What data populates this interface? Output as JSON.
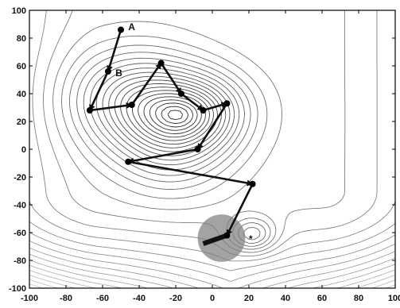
{
  "chart_data": {
    "type": "contour-path",
    "xlim": [
      -100,
      100
    ],
    "ylim": [
      -100,
      100
    ],
    "x_ticks": [
      -100,
      -80,
      -60,
      -40,
      -20,
      0,
      20,
      40,
      60,
      80,
      100
    ],
    "y_ticks": [
      -100,
      -80,
      -60,
      -40,
      -20,
      0,
      20,
      40,
      60,
      80,
      100
    ],
    "goal_marker": {
      "label": "*",
      "x": 21,
      "y": -64
    },
    "goal_region": {
      "x": 5,
      "y": -64,
      "radius": 13
    },
    "path": [
      {
        "x": -50,
        "y": 86
      },
      {
        "x": -57,
        "y": 56
      },
      {
        "x": -67,
        "y": 28
      },
      {
        "x": -44,
        "y": 32
      },
      {
        "x": -28,
        "y": 62
      },
      {
        "x": -17,
        "y": 40
      },
      {
        "x": -5,
        "y": 28
      },
      {
        "x": 8,
        "y": 33
      },
      {
        "x": -8,
        "y": 0
      },
      {
        "x": -46,
        "y": -9
      },
      {
        "x": 22,
        "y": -25
      },
      {
        "x": 8,
        "y": -62
      },
      {
        "x": -5,
        "y": -68
      }
    ],
    "path_annotations": [
      {
        "text": "A",
        "x": -46,
        "y": 88
      },
      {
        "text": "B",
        "x": -53,
        "y": 55
      }
    ]
  }
}
